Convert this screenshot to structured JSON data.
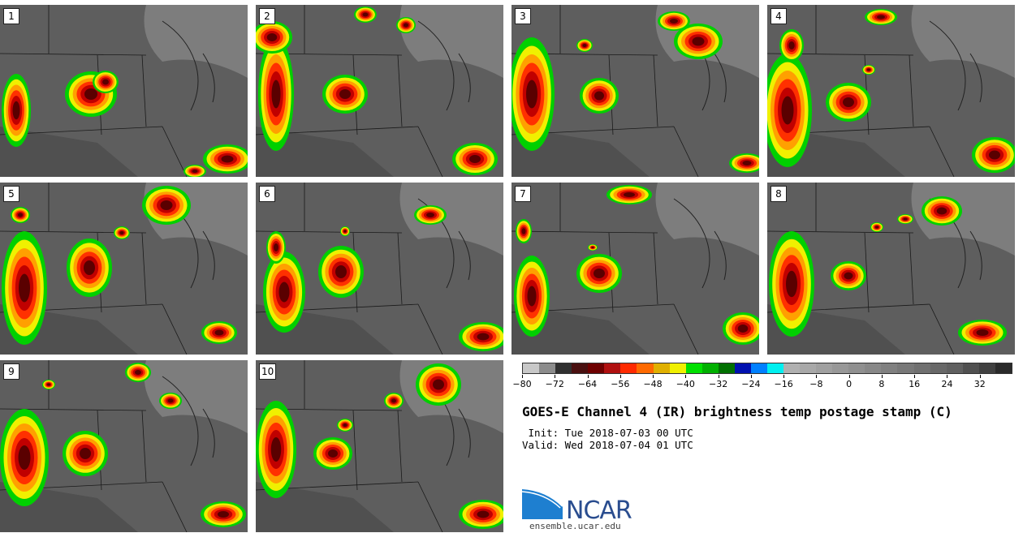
{
  "panels": [
    {
      "label": "1"
    },
    {
      "label": "2"
    },
    {
      "label": "3"
    },
    {
      "label": "4"
    },
    {
      "label": "5"
    },
    {
      "label": "6"
    },
    {
      "label": "7"
    },
    {
      "label": "8"
    },
    {
      "label": "9"
    },
    {
      "label": "10"
    }
  ],
  "colorbar": {
    "min": -80,
    "max": 40,
    "step": 4,
    "tick_labels": [
      "−80",
      "−72",
      "−64",
      "−56",
      "−48",
      "−40",
      "−32",
      "−24",
      "−16",
      "−8",
      "0",
      "8",
      "16",
      "24",
      "32"
    ],
    "tick_values": [
      -80,
      -72,
      -64,
      -56,
      -48,
      -40,
      -32,
      -24,
      -16,
      -8,
      0,
      8,
      16,
      24,
      32
    ],
    "colors": [
      "#c8c8c8",
      "#8c8c8c",
      "#303030",
      "#4a1010",
      "#6e0000",
      "#b01010",
      "#ff2a00",
      "#ff6a00",
      "#e0b000",
      "#f0f000",
      "#00e000",
      "#00b000",
      "#007000",
      "#0010b0",
      "#0080ff",
      "#00f0f0",
      "#b0b0b0",
      "#a8a8a8",
      "#a0a0a0",
      "#989898",
      "#909090",
      "#888888",
      "#808080",
      "#787878",
      "#707070",
      "#686868",
      "#606060",
      "#505050",
      "#404040",
      "#2a2a2a"
    ]
  },
  "title": "GOES-E Channel 4 (IR) brightness temp postage stamp (C)",
  "init": " Init: Tue 2018-07-03 00 UTC",
  "valid": "Valid: Wed 2018-07-04 01 UTC",
  "logo": {
    "text": "NCAR",
    "url": "ensemble.ucar.edu"
  }
}
